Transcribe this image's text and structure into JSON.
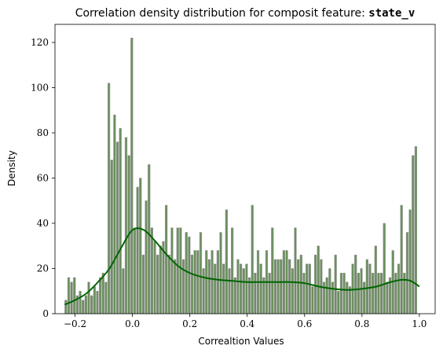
{
  "chart_data": {
    "type": "bar",
    "title": "Correlation density distribution for composit feature: ",
    "title_feature": "state_v",
    "xlabel": "Correaltion Values",
    "ylabel": "Density",
    "xlim": [
      -0.27,
      1.055
    ],
    "ylim": [
      0,
      128
    ],
    "x_ticks": [
      -0.2,
      0.0,
      0.2,
      0.4,
      0.6,
      0.8,
      1.0
    ],
    "x_tick_labels": [
      "−0.2",
      "0.0",
      "0.2",
      "0.4",
      "0.6",
      "0.8",
      "1.0"
    ],
    "y_ticks": [
      0,
      20,
      40,
      60,
      80,
      100,
      120
    ],
    "y_tick_labels": [
      "0",
      "20",
      "40",
      "60",
      "80",
      "100",
      "120"
    ],
    "grid": false,
    "bar_color": "#6b8f5e",
    "bar_edge_color": "#9a9a9a",
    "kde_color": "#006400",
    "histogram": {
      "bin_starts": [
        -0.236,
        -0.226,
        -0.216,
        -0.206,
        -0.196,
        -0.186,
        -0.176,
        -0.166,
        -0.156,
        -0.146,
        -0.136,
        -0.126,
        -0.116,
        -0.106,
        -0.096,
        -0.086,
        -0.076,
        -0.066,
        -0.056,
        -0.046,
        -0.036,
        -0.026,
        -0.016,
        -0.006,
        0.004,
        0.014,
        0.024,
        0.034,
        0.044,
        0.054,
        0.064,
        0.074,
        0.084,
        0.094,
        0.104,
        0.114,
        0.124,
        0.134,
        0.144,
        0.154,
        0.164,
        0.174,
        0.184,
        0.194,
        0.204,
        0.214,
        0.224,
        0.234,
        0.244,
        0.254,
        0.264,
        0.274,
        0.284,
        0.294,
        0.304,
        0.314,
        0.324,
        0.334,
        0.344,
        0.354,
        0.364,
        0.374,
        0.384,
        0.394,
        0.404,
        0.414,
        0.424,
        0.434,
        0.444,
        0.454,
        0.464,
        0.474,
        0.484,
        0.494,
        0.504,
        0.514,
        0.524,
        0.534,
        0.544,
        0.554,
        0.564,
        0.574,
        0.584,
        0.594,
        0.604,
        0.614,
        0.624,
        0.634,
        0.644,
        0.654,
        0.664,
        0.674,
        0.684,
        0.694,
        0.704,
        0.714,
        0.724,
        0.734,
        0.744,
        0.754,
        0.764,
        0.774,
        0.784,
        0.794,
        0.804,
        0.814,
        0.824,
        0.834,
        0.844,
        0.854,
        0.864,
        0.874,
        0.884,
        0.894,
        0.904,
        0.914,
        0.924,
        0.934,
        0.944,
        0.954,
        0.964,
        0.974,
        0.984,
        0.994
      ],
      "bin_width": 0.0075,
      "values": [
        6,
        16,
        14,
        16,
        8,
        10,
        6,
        8,
        14,
        8,
        12,
        10,
        16,
        18,
        14,
        102,
        68,
        88,
        76,
        82,
        20,
        78,
        70,
        122,
        38,
        56,
        60,
        26,
        50,
        66,
        38,
        32,
        26,
        30,
        32,
        48,
        26,
        38,
        24,
        38,
        38,
        24,
        36,
        34,
        26,
        28,
        28,
        36,
        20,
        28,
        24,
        28,
        22,
        28,
        36,
        22,
        46,
        20,
        38,
        16,
        24,
        22,
        20,
        22,
        16,
        48,
        18,
        28,
        22,
        16,
        28,
        18,
        38,
        24,
        24,
        24,
        28,
        28,
        24,
        20,
        38,
        24,
        26,
        18,
        22,
        22,
        12,
        26,
        30,
        24,
        14,
        16,
        20,
        14,
        26,
        10,
        18,
        18,
        14,
        12,
        22,
        26,
        18,
        20,
        14,
        24,
        22,
        18,
        30,
        18,
        18,
        40,
        14,
        16,
        28,
        18,
        22,
        48,
        18,
        36,
        46,
        70,
        74
      ],
      "note": ""
    },
    "kde": {
      "x": [
        -0.236,
        -0.2,
        -0.16,
        -0.12,
        -0.08,
        -0.04,
        0.0,
        0.04,
        0.08,
        0.12,
        0.16,
        0.2,
        0.25,
        0.3,
        0.35,
        0.4,
        0.45,
        0.5,
        0.55,
        0.6,
        0.65,
        0.7,
        0.75,
        0.8,
        0.85,
        0.9,
        0.94,
        0.97,
        1.0
      ],
      "y": [
        4,
        6,
        9,
        14,
        20,
        29,
        37,
        37,
        32,
        26,
        21,
        18,
        16,
        15,
        14.5,
        14,
        14,
        14,
        14,
        13.5,
        12,
        11,
        10.5,
        11,
        12,
        14,
        15,
        14.5,
        12
      ]
    }
  }
}
